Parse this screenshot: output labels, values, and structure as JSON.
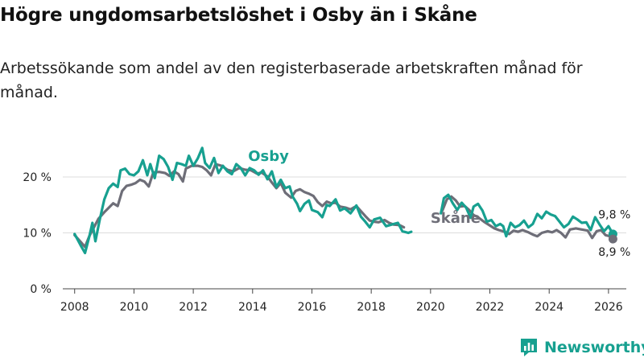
{
  "title": "Högre ungdomsarbetslöshet i Osby än i Skåne",
  "subtitle": "Arbetssökande som andel av den registerbaserade arbetskraften månad för månad.",
  "brand": {
    "name": "Newsworthy"
  },
  "colors": {
    "osby": "#17a090",
    "skane": "#6e6e78",
    "grid": "#dcdcdc",
    "axis": "#444444",
    "text": "#222222"
  },
  "chart_data": {
    "type": "line",
    "title": "Högre ungdomsarbetslöshet i Osby än i Skåne",
    "xlabel": "",
    "ylabel": "",
    "xlim": [
      2007.6,
      2026.6
    ],
    "ylim": [
      0,
      22
    ],
    "y_ticks": [
      {
        "value": 0,
        "label": "0 %"
      },
      {
        "value": 10,
        "label": "10 %"
      },
      {
        "value": 20,
        "label": "20 %"
      }
    ],
    "x_ticks": [
      {
        "value": 2008,
        "label": "2008"
      },
      {
        "value": 2010,
        "label": "2010"
      },
      {
        "value": 2012,
        "label": "2012"
      },
      {
        "value": 2014,
        "label": "2014"
      },
      {
        "value": 2016,
        "label": "2016"
      },
      {
        "value": 2018,
        "label": "2018"
      },
      {
        "value": 2020,
        "label": "2020"
      },
      {
        "value": 2022,
        "label": "2022"
      },
      {
        "value": 2024,
        "label": "2024"
      },
      {
        "value": 2026,
        "label": "2026"
      }
    ],
    "series": [
      {
        "name": "Osby",
        "color": "#17a090",
        "points": [
          [
            2008.0,
            9.8
          ],
          [
            2008.2,
            7.8
          ],
          [
            2008.35,
            6.4
          ],
          [
            2008.5,
            9.5
          ],
          [
            2008.6,
            11.8
          ],
          [
            2008.7,
            8.5
          ],
          [
            2008.85,
            12.5
          ],
          [
            2009.0,
            16.0
          ],
          [
            2009.15,
            18.0
          ],
          [
            2009.3,
            18.8
          ],
          [
            2009.45,
            18.2
          ],
          [
            2009.55,
            21.2
          ],
          [
            2009.7,
            21.5
          ],
          [
            2009.85,
            20.5
          ],
          [
            2010.0,
            20.3
          ],
          [
            2010.15,
            21.0
          ],
          [
            2010.3,
            23.0
          ],
          [
            2010.45,
            20.3
          ],
          [
            2010.55,
            22.3
          ],
          [
            2010.7,
            19.8
          ],
          [
            2010.85,
            23.8
          ],
          [
            2011.0,
            23.2
          ],
          [
            2011.15,
            21.8
          ],
          [
            2011.3,
            19.5
          ],
          [
            2011.45,
            22.5
          ],
          [
            2011.6,
            22.3
          ],
          [
            2011.75,
            22.0
          ],
          [
            2011.85,
            23.8
          ],
          [
            2012.0,
            22.0
          ],
          [
            2012.15,
            23.3
          ],
          [
            2012.3,
            25.2
          ],
          [
            2012.4,
            22.5
          ],
          [
            2012.55,
            21.6
          ],
          [
            2012.7,
            23.4
          ],
          [
            2012.85,
            20.7
          ],
          [
            2013.0,
            22.0
          ],
          [
            2013.15,
            21.0
          ],
          [
            2013.3,
            20.5
          ],
          [
            2013.45,
            22.3
          ],
          [
            2013.6,
            21.6
          ],
          [
            2013.75,
            20.3
          ],
          [
            2013.9,
            21.6
          ],
          [
            2014.05,
            21.2
          ],
          [
            2014.2,
            20.4
          ],
          [
            2014.35,
            21.2
          ],
          [
            2014.5,
            19.6
          ],
          [
            2014.65,
            21.0
          ],
          [
            2014.8,
            18.2
          ],
          [
            2014.95,
            19.5
          ],
          [
            2015.1,
            18.0
          ],
          [
            2015.25,
            18.3
          ],
          [
            2015.35,
            16.5
          ],
          [
            2015.5,
            15.2
          ],
          [
            2015.6,
            13.9
          ],
          [
            2015.75,
            15.2
          ],
          [
            2015.9,
            15.8
          ],
          [
            2016.0,
            14.1
          ],
          [
            2016.2,
            13.7
          ],
          [
            2016.35,
            12.8
          ],
          [
            2016.5,
            15.0
          ],
          [
            2016.6,
            14.8
          ],
          [
            2016.8,
            16.0
          ],
          [
            2016.95,
            14.0
          ],
          [
            2017.1,
            14.4
          ],
          [
            2017.3,
            13.5
          ],
          [
            2017.5,
            14.9
          ],
          [
            2017.65,
            12.9
          ],
          [
            2017.8,
            12.0
          ],
          [
            2017.95,
            11.0
          ],
          [
            2018.1,
            12.4
          ],
          [
            2018.3,
            12.7
          ],
          [
            2018.5,
            11.2
          ],
          [
            2018.7,
            11.5
          ],
          [
            2018.9,
            11.8
          ],
          [
            2019.05,
            10.3
          ],
          [
            2019.25,
            10.0
          ],
          [
            2019.35,
            10.2
          ]
        ]
      },
      {
        "name": "Osby",
        "color": "#17a090",
        "points": [
          [
            2020.35,
            13.5
          ],
          [
            2020.45,
            16.2
          ],
          [
            2020.6,
            16.8
          ],
          [
            2020.75,
            15.3
          ],
          [
            2020.9,
            14.1
          ],
          [
            2021.05,
            15.4
          ],
          [
            2021.2,
            14.5
          ],
          [
            2021.35,
            12.7
          ],
          [
            2021.45,
            14.7
          ],
          [
            2021.6,
            15.2
          ],
          [
            2021.75,
            14.0
          ],
          [
            2021.9,
            12.0
          ],
          [
            2022.05,
            12.3
          ],
          [
            2022.2,
            11.2
          ],
          [
            2022.35,
            11.6
          ],
          [
            2022.45,
            11.2
          ],
          [
            2022.55,
            9.4
          ],
          [
            2022.7,
            11.8
          ],
          [
            2022.85,
            11.0
          ],
          [
            2023.0,
            11.4
          ],
          [
            2023.15,
            12.2
          ],
          [
            2023.3,
            11.0
          ],
          [
            2023.45,
            11.6
          ],
          [
            2023.6,
            13.4
          ],
          [
            2023.75,
            12.6
          ],
          [
            2023.9,
            13.8
          ],
          [
            2024.05,
            13.3
          ],
          [
            2024.2,
            13.0
          ],
          [
            2024.35,
            12.0
          ],
          [
            2024.5,
            11.0
          ],
          [
            2024.65,
            11.6
          ],
          [
            2024.8,
            12.9
          ],
          [
            2024.95,
            12.4
          ],
          [
            2025.1,
            11.8
          ],
          [
            2025.25,
            11.9
          ],
          [
            2025.4,
            10.5
          ],
          [
            2025.55,
            12.8
          ],
          [
            2025.7,
            11.5
          ],
          [
            2025.85,
            10.3
          ],
          [
            2026.0,
            11.2
          ],
          [
            2026.15,
            9.8
          ]
        ]
      },
      {
        "name": "Skåne",
        "color": "#6e6e78",
        "points": [
          [
            2008.0,
            9.6
          ],
          [
            2008.2,
            8.4
          ],
          [
            2008.35,
            7.5
          ],
          [
            2008.5,
            9.5
          ],
          [
            2008.65,
            11.0
          ],
          [
            2008.8,
            12.5
          ],
          [
            2009.0,
            13.7
          ],
          [
            2009.15,
            14.5
          ],
          [
            2009.3,
            15.3
          ],
          [
            2009.45,
            14.8
          ],
          [
            2009.6,
            17.5
          ],
          [
            2009.75,
            18.4
          ],
          [
            2009.9,
            18.6
          ],
          [
            2010.05,
            18.9
          ],
          [
            2010.2,
            19.5
          ],
          [
            2010.35,
            19.2
          ],
          [
            2010.5,
            18.3
          ],
          [
            2010.65,
            20.8
          ],
          [
            2010.85,
            20.9
          ],
          [
            2011.05,
            20.7
          ],
          [
            2011.2,
            20.2
          ],
          [
            2011.35,
            21.0
          ],
          [
            2011.5,
            20.5
          ],
          [
            2011.65,
            19.2
          ],
          [
            2011.75,
            21.5
          ],
          [
            2011.95,
            22.0
          ],
          [
            2012.15,
            22.0
          ],
          [
            2012.3,
            21.8
          ],
          [
            2012.45,
            21.2
          ],
          [
            2012.6,
            20.3
          ],
          [
            2012.75,
            22.3
          ],
          [
            2012.95,
            22.0
          ],
          [
            2013.15,
            21.3
          ],
          [
            2013.35,
            21.0
          ],
          [
            2013.55,
            21.6
          ],
          [
            2013.75,
            21.3
          ],
          [
            2013.95,
            21.2
          ],
          [
            2014.15,
            20.6
          ],
          [
            2014.3,
            20.8
          ],
          [
            2014.5,
            20.1
          ],
          [
            2014.65,
            19.0
          ],
          [
            2014.8,
            18.0
          ],
          [
            2014.95,
            18.9
          ],
          [
            2015.1,
            17.2
          ],
          [
            2015.3,
            16.3
          ],
          [
            2015.45,
            17.5
          ],
          [
            2015.6,
            17.8
          ],
          [
            2015.75,
            17.3
          ],
          [
            2015.9,
            17.0
          ],
          [
            2016.05,
            16.6
          ],
          [
            2016.2,
            15.5
          ],
          [
            2016.35,
            14.8
          ],
          [
            2016.5,
            15.6
          ],
          [
            2016.65,
            15.3
          ],
          [
            2016.8,
            15.4
          ],
          [
            2016.95,
            14.7
          ],
          [
            2017.15,
            14.5
          ],
          [
            2017.3,
            14.2
          ],
          [
            2017.5,
            14.8
          ],
          [
            2017.65,
            13.9
          ],
          [
            2017.8,
            13.0
          ],
          [
            2017.95,
            12.2
          ],
          [
            2018.1,
            12.0
          ],
          [
            2018.25,
            11.9
          ],
          [
            2018.45,
            12.3
          ],
          [
            2018.6,
            11.8
          ],
          [
            2018.75,
            11.5
          ],
          [
            2018.95,
            11.4
          ],
          [
            2019.1,
            11.0
          ]
        ]
      },
      {
        "name": "Skåne",
        "color": "#6e6e78",
        "points": [
          [
            2020.4,
            14.0
          ],
          [
            2020.55,
            16.0
          ],
          [
            2020.7,
            16.5
          ],
          [
            2020.85,
            15.8
          ],
          [
            2021.0,
            14.7
          ],
          [
            2021.15,
            14.8
          ],
          [
            2021.3,
            14.1
          ],
          [
            2021.45,
            13.2
          ],
          [
            2021.6,
            12.8
          ],
          [
            2021.8,
            12.0
          ],
          [
            2021.95,
            11.5
          ],
          [
            2022.15,
            10.8
          ],
          [
            2022.3,
            10.5
          ],
          [
            2022.5,
            10.2
          ],
          [
            2022.65,
            9.8
          ],
          [
            2022.8,
            10.4
          ],
          [
            2022.95,
            10.2
          ],
          [
            2023.1,
            10.5
          ],
          [
            2023.3,
            10.1
          ],
          [
            2023.45,
            9.7
          ],
          [
            2023.6,
            9.4
          ],
          [
            2023.75,
            10.0
          ],
          [
            2023.95,
            10.3
          ],
          [
            2024.1,
            10.1
          ],
          [
            2024.25,
            10.5
          ],
          [
            2024.4,
            10.0
          ],
          [
            2024.55,
            9.2
          ],
          [
            2024.7,
            10.6
          ],
          [
            2024.9,
            10.8
          ],
          [
            2025.1,
            10.6
          ],
          [
            2025.3,
            10.4
          ],
          [
            2025.45,
            9.1
          ],
          [
            2025.6,
            10.3
          ],
          [
            2025.75,
            10.5
          ],
          [
            2025.9,
            9.6
          ],
          [
            2026.05,
            9.4
          ],
          [
            2026.15,
            8.9
          ]
        ]
      }
    ],
    "annotations": [
      {
        "text": "Osby",
        "x": 2013.85,
        "y": 22.9,
        "series": "Osby",
        "bold": true
      },
      {
        "text": "Skåne",
        "x": 2020.0,
        "y": 11.8,
        "series": "Skåne",
        "bold": true
      },
      {
        "text": "9,8 %",
        "x": 2026.2,
        "y": 12.6,
        "series": "Osby",
        "bold": false
      },
      {
        "text": "8,9 %",
        "x": 2026.2,
        "y": 5.9,
        "series": "Skåne",
        "bold": false
      }
    ],
    "end_points": [
      {
        "series": "Osby",
        "x": 2026.15,
        "y": 9.8
      },
      {
        "series": "Skåne",
        "x": 2026.15,
        "y": 8.9
      }
    ]
  }
}
